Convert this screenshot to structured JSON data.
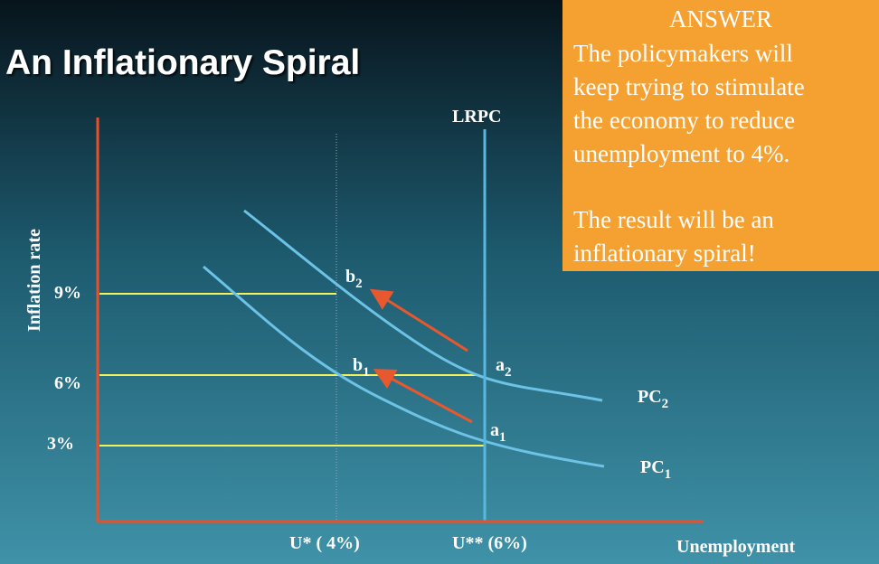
{
  "title": "An Inflationary Spiral",
  "answer": {
    "heading": "ANSWER",
    "paragraph1": [
      "The policymakers will",
      "keep trying to stimulate",
      "the economy to reduce",
      "unemployment to 4%."
    ],
    "paragraph2": [
      "The result will be an",
      "inflationary spiral!"
    ]
  },
  "axes": {
    "y_label": "Inflation rate",
    "x_label": "Unemployment",
    "y_ticks": [
      "9%",
      "6%",
      "3%"
    ],
    "x_ticks": [
      "U* ( 4%)",
      "U** (6%)"
    ]
  },
  "lines": {
    "lrpc": "LRPC",
    "pc2": {
      "letter": "PC",
      "sub": "2"
    },
    "pc1": {
      "letter": "PC",
      "sub": "1"
    }
  },
  "points": {
    "b2": {
      "letter": "b",
      "sub": "2"
    },
    "b1": {
      "letter": "b",
      "sub": "1"
    },
    "a2": {
      "letter": "a",
      "sub": "2"
    },
    "a1": {
      "letter": "a",
      "sub": "1"
    }
  }
}
